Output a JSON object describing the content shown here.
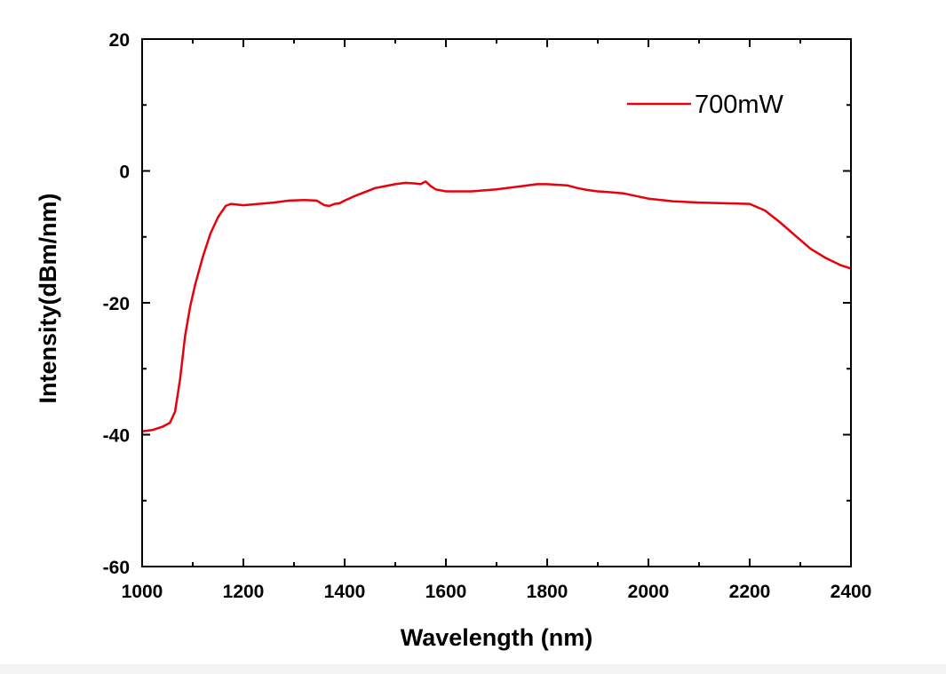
{
  "chart_data": {
    "type": "line",
    "title": "",
    "xlabel": "Wavelength (nm)",
    "ylabel": "Intensity(dBm/nm)",
    "xlim": [
      1000,
      2400
    ],
    "ylim": [
      -60,
      20
    ],
    "xticks": [
      1000,
      1200,
      1400,
      1600,
      1800,
      2000,
      2200,
      2400
    ],
    "yticks": [
      -60,
      -40,
      -20,
      0,
      20
    ],
    "legend_position": "top-right",
    "series": [
      {
        "name": "700mW",
        "color": "#e8000b",
        "x": [
          1000,
          1020,
          1040,
          1055,
          1065,
          1075,
          1085,
          1095,
          1105,
          1120,
          1135,
          1150,
          1165,
          1175,
          1200,
          1230,
          1260,
          1290,
          1320,
          1345,
          1360,
          1370,
          1380,
          1390,
          1400,
          1420,
          1440,
          1460,
          1480,
          1500,
          1520,
          1540,
          1550,
          1560,
          1570,
          1580,
          1600,
          1650,
          1700,
          1750,
          1780,
          1800,
          1820,
          1840,
          1860,
          1880,
          1900,
          1920,
          1950,
          2000,
          2050,
          2100,
          2150,
          2200,
          2230,
          2260,
          2290,
          2320,
          2350,
          2380,
          2400
        ],
        "y": [
          -39.5,
          -39.3,
          -38.8,
          -38.2,
          -36.5,
          -31.5,
          -25.0,
          -20.5,
          -17.2,
          -13.0,
          -9.5,
          -7.0,
          -5.3,
          -5.0,
          -5.2,
          -5.0,
          -4.8,
          -4.5,
          -4.4,
          -4.5,
          -5.2,
          -5.3,
          -5.0,
          -4.9,
          -4.5,
          -3.8,
          -3.2,
          -2.6,
          -2.3,
          -2.0,
          -1.8,
          -1.9,
          -2.0,
          -1.6,
          -2.3,
          -2.8,
          -3.1,
          -3.1,
          -2.8,
          -2.3,
          -2.0,
          -2.0,
          -2.1,
          -2.2,
          -2.6,
          -2.9,
          -3.1,
          -3.2,
          -3.4,
          -4.2,
          -4.6,
          -4.8,
          -4.9,
          -5.0,
          -6.0,
          -7.8,
          -9.8,
          -11.8,
          -13.2,
          -14.3,
          -14.8
        ]
      }
    ]
  }
}
